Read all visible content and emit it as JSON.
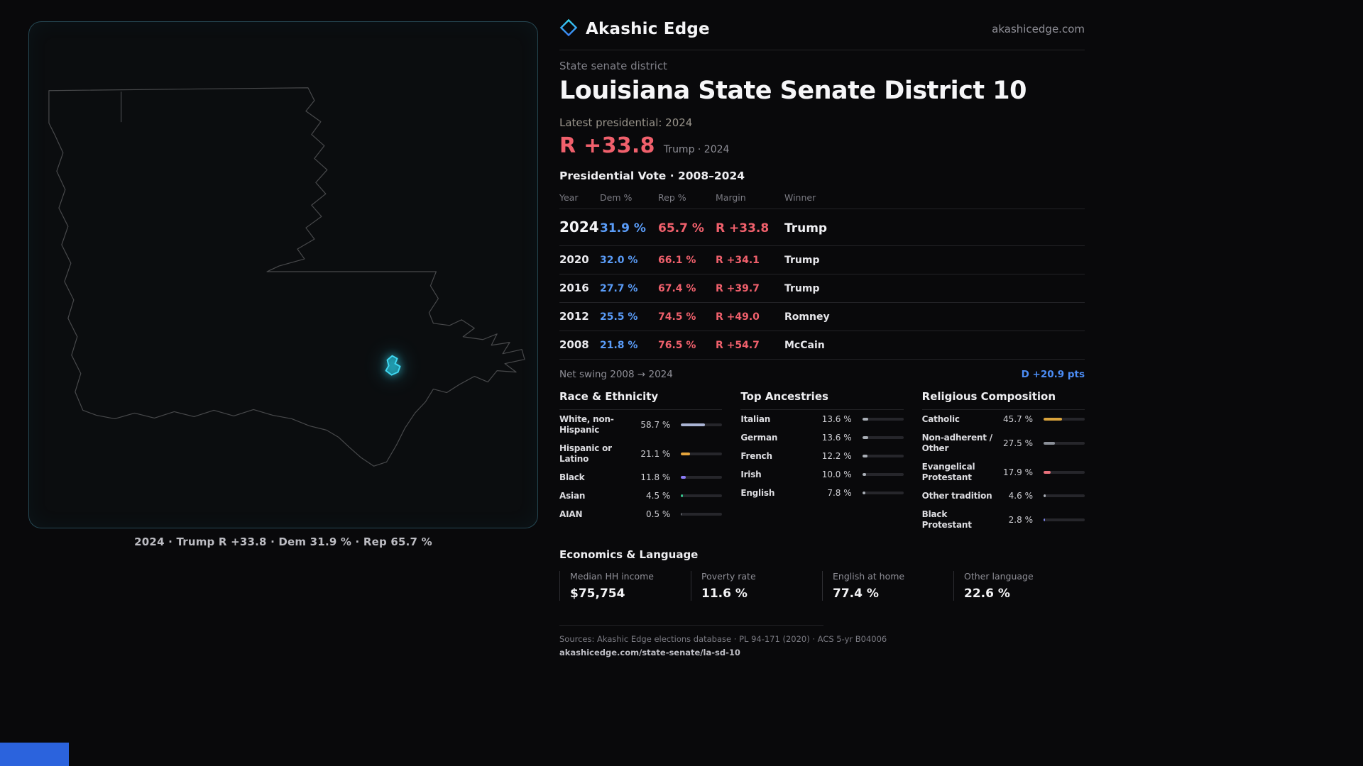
{
  "brand": {
    "name": "Akashic Edge",
    "domain": "akashicedge.com"
  },
  "page": {
    "district_type": "State senate district",
    "title": "Louisiana State Senate District 10",
    "latest_label": "Latest presidential: 2024",
    "headline_margin": "R +33.8",
    "headline_context": "Trump · 2024"
  },
  "map": {
    "caption": "2024 · Trump R +33.8 · Dem 31.9 % · Rep 65.7 %"
  },
  "vote_table": {
    "title": "Presidential Vote · 2008–2024",
    "columns": {
      "year": "Year",
      "dem": "Dem %",
      "rep": "Rep %",
      "margin": "Margin",
      "winner": "Winner"
    },
    "rows": [
      {
        "year": "2024",
        "dem": "31.9 %",
        "rep": "65.7 %",
        "margin": "R +33.8",
        "winner": "Trump"
      },
      {
        "year": "2020",
        "dem": "32.0 %",
        "rep": "66.1 %",
        "margin": "R +34.1",
        "winner": "Trump"
      },
      {
        "year": "2016",
        "dem": "27.7 %",
        "rep": "67.4 %",
        "margin": "R +39.7",
        "winner": "Trump"
      },
      {
        "year": "2012",
        "dem": "25.5 %",
        "rep": "74.5 %",
        "margin": "R +49.0",
        "winner": "Romney"
      },
      {
        "year": "2008",
        "dem": "21.8 %",
        "rep": "76.5 %",
        "margin": "R +54.7",
        "winner": "McCain"
      }
    ],
    "net_swing_label": "Net swing 2008 → 2024",
    "net_swing_value": "D +20.9 pts"
  },
  "demographics": {
    "race": {
      "title": "Race & Ethnicity",
      "items": [
        {
          "label": "White, non-Hispanic",
          "value": "58.7 %",
          "pct": 58.7,
          "color": "#aab4d4"
        },
        {
          "label": "Hispanic or Latino",
          "value": "21.1 %",
          "pct": 21.1,
          "color": "#e5a43c"
        },
        {
          "label": "Black",
          "value": "11.8 %",
          "pct": 11.8,
          "color": "#8b7cf6"
        },
        {
          "label": "Asian",
          "value": "4.5 %",
          "pct": 4.5,
          "color": "#34c98e"
        },
        {
          "label": "AIAN",
          "value": "0.5 %",
          "pct": 0.5,
          "color": "#8a8f98"
        }
      ]
    },
    "ancestries": {
      "title": "Top Ancestries",
      "items": [
        {
          "label": "Italian",
          "value": "13.6 %",
          "pct": 13.6,
          "color": "#a9aeb6"
        },
        {
          "label": "German",
          "value": "13.6 %",
          "pct": 13.6,
          "color": "#a9aeb6"
        },
        {
          "label": "French",
          "value": "12.2 %",
          "pct": 12.2,
          "color": "#a9aeb6"
        },
        {
          "label": "Irish",
          "value": "10.0 %",
          "pct": 10.0,
          "color": "#a9aeb6"
        },
        {
          "label": "English",
          "value": "7.8 %",
          "pct": 7.8,
          "color": "#a9aeb6"
        }
      ]
    },
    "religion": {
      "title": "Religious Composition",
      "items": [
        {
          "label": "Catholic",
          "value": "45.7 %",
          "pct": 45.7,
          "color": "#d9a33c"
        },
        {
          "label": "Non-adherent / Other",
          "value": "27.5 %",
          "pct": 27.5,
          "color": "#8a8f98"
        },
        {
          "label": "Evangelical Protestant",
          "value": "17.9 %",
          "pct": 17.9,
          "color": "#e8707b"
        },
        {
          "label": "Other tradition",
          "value": "4.6 %",
          "pct": 4.6,
          "color": "#a9aeb6"
        },
        {
          "label": "Black Protestant",
          "value": "2.8 %",
          "pct": 2.8,
          "color": "#7b82e6"
        }
      ]
    }
  },
  "economics": {
    "title": "Economics & Language",
    "stats": [
      {
        "label": "Median HH income",
        "value": "$75,754"
      },
      {
        "label": "Poverty rate",
        "value": "11.6 %"
      },
      {
        "label": "English at home",
        "value": "77.4 %"
      },
      {
        "label": "Other language",
        "value": "22.6 %"
      }
    ]
  },
  "footer": {
    "sources": "Sources: Akashic Edge elections database · PL 94-171 (2020) · ACS 5-yr B04006",
    "permalink": "akashicedge.com/state-senate/la-sd-10"
  },
  "colors": {
    "rep_red": "#f0606c",
    "dem_blue": "#5a9cf8",
    "swing_blue": "#4c8df6",
    "accent_cyan": "#3fd8f2"
  },
  "chart_data": [
    {
      "type": "table",
      "title": "Presidential Vote · 2008–2024",
      "columns": [
        "Year",
        "Dem %",
        "Rep %",
        "Margin",
        "Winner"
      ],
      "rows": [
        [
          2024,
          31.9,
          65.7,
          "R +33.8",
          "Trump"
        ],
        [
          2020,
          32.0,
          66.1,
          "R +34.1",
          "Trump"
        ],
        [
          2016,
          27.7,
          67.4,
          "R +39.7",
          "Trump"
        ],
        [
          2012,
          25.5,
          74.5,
          "R +49.0",
          "Romney"
        ],
        [
          2008,
          21.8,
          76.5,
          "R +54.7",
          "McCain"
        ]
      ],
      "annotations": [
        "Net swing 2008 → 2024: D +20.9 pts"
      ]
    },
    {
      "type": "bar",
      "title": "Race & Ethnicity",
      "categories": [
        "White, non-Hispanic",
        "Hispanic or Latino",
        "Black",
        "Asian",
        "AIAN"
      ],
      "values": [
        58.7,
        21.1,
        11.8,
        4.5,
        0.5
      ],
      "xlim": [
        0,
        100
      ],
      "unit": "%"
    },
    {
      "type": "bar",
      "title": "Top Ancestries",
      "categories": [
        "Italian",
        "German",
        "French",
        "Irish",
        "English"
      ],
      "values": [
        13.6,
        13.6,
        12.2,
        10.0,
        7.8
      ],
      "xlim": [
        0,
        100
      ],
      "unit": "%"
    },
    {
      "type": "bar",
      "title": "Religious Composition",
      "categories": [
        "Catholic",
        "Non-adherent / Other",
        "Evangelical Protestant",
        "Other tradition",
        "Black Protestant"
      ],
      "values": [
        45.7,
        27.5,
        17.9,
        4.6,
        2.8
      ],
      "xlim": [
        0,
        100
      ],
      "unit": "%"
    }
  ]
}
